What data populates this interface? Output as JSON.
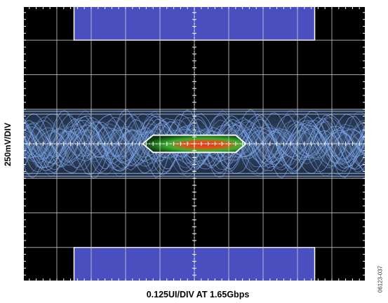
{
  "chart_data": {
    "type": "eye-diagram",
    "xlabel": "0.125UI/DIV AT 1.65Gbps",
    "ylabel": "250mV/DIV",
    "x_per_div": "0.125UI",
    "y_per_div": "250mV",
    "bit_rate": "1.65Gbps",
    "grid": true,
    "divisions": {
      "x": 10,
      "y": 8
    },
    "eye_opening": {
      "width_ui": 0.25,
      "height_mv": 125
    },
    "signal_band_mv": [
      -250,
      250
    ],
    "mask_limits_mv": {
      "upper": 750,
      "lower": -750
    },
    "colors": {
      "screen": "#000000",
      "grid": "#cfcfcf",
      "mask": "#4a4fc0",
      "trace": "#7fa9ee",
      "eye_hot": "#e8321a",
      "eye_mid": "#3cb030",
      "eye_cold": "#0c3a10"
    }
  },
  "figure_code": "06123-037"
}
